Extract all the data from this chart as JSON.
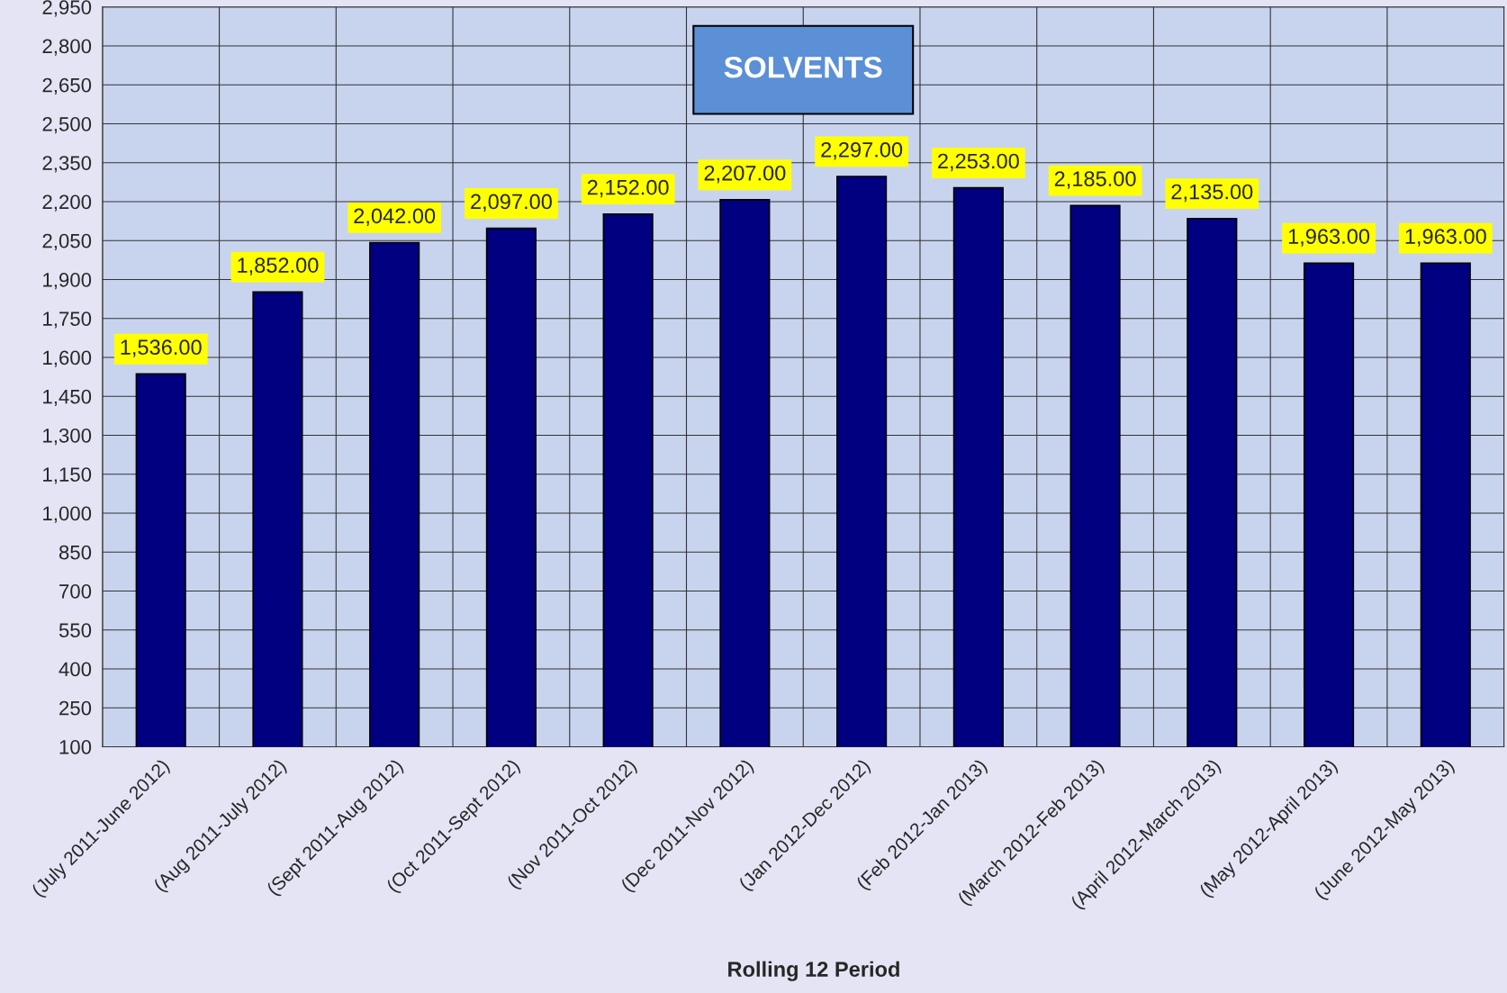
{
  "chart_data": {
    "type": "bar",
    "title": "SOLVENTS",
    "xlabel": "Rolling 12 Period",
    "categories": [
      "(July 2011-June 2012)",
      "(Aug 2011-July 2012)",
      "(Sept 2011-Aug 2012)",
      "(Oct 2011-Sept 2012)",
      "(Nov 2011-Oct 2012)",
      "(Dec 2011-Nov 2012)",
      "(Jan 2012-Dec 2012)",
      "(Feb 2012-Jan 2013)",
      "(March 2012-Feb 2013)",
      "(April 2012-March 2013)",
      "(May 2012-April 2013)",
      "(June 2012-May 2013)"
    ],
    "values": [
      1536,
      1852,
      2042,
      2097,
      2152,
      2207,
      2297,
      2253,
      2185,
      2135,
      1963,
      1963
    ],
    "value_labels": [
      "1,536.00",
      "1,852.00",
      "2,042.00",
      "2,097.00",
      "2,152.00",
      "2,207.00",
      "2,297.00",
      "2,253.00",
      "2,185.00",
      "2,135.00",
      "1,963.00",
      "1,963.00"
    ],
    "color": "#000080",
    "ylim": [
      100,
      2950
    ],
    "yticks": [
      {
        "value": 100,
        "label": "100"
      },
      {
        "value": 250,
        "label": "250"
      },
      {
        "value": 400,
        "label": "400"
      },
      {
        "value": 550,
        "label": "550"
      },
      {
        "value": 700,
        "label": "700"
      },
      {
        "value": 850,
        "label": "850"
      },
      {
        "value": 1000,
        "label": "1,000"
      },
      {
        "value": 1150,
        "label": "1,150"
      },
      {
        "value": 1300,
        "label": "1,300"
      },
      {
        "value": 1450,
        "label": "1,450"
      },
      {
        "value": 1600,
        "label": "1,600"
      },
      {
        "value": 1750,
        "label": "1,750"
      },
      {
        "value": 1900,
        "label": "1,900"
      },
      {
        "value": 2050,
        "label": "2,050"
      },
      {
        "value": 2200,
        "label": "2,200"
      },
      {
        "value": 2350,
        "label": "2,350"
      },
      {
        "value": 2500,
        "label": "2,500"
      },
      {
        "value": 2650,
        "label": "2,650"
      },
      {
        "value": 2800,
        "label": "2,800"
      },
      {
        "value": 2950,
        "label": "2,950"
      }
    ],
    "grid": true,
    "legend": false
  }
}
